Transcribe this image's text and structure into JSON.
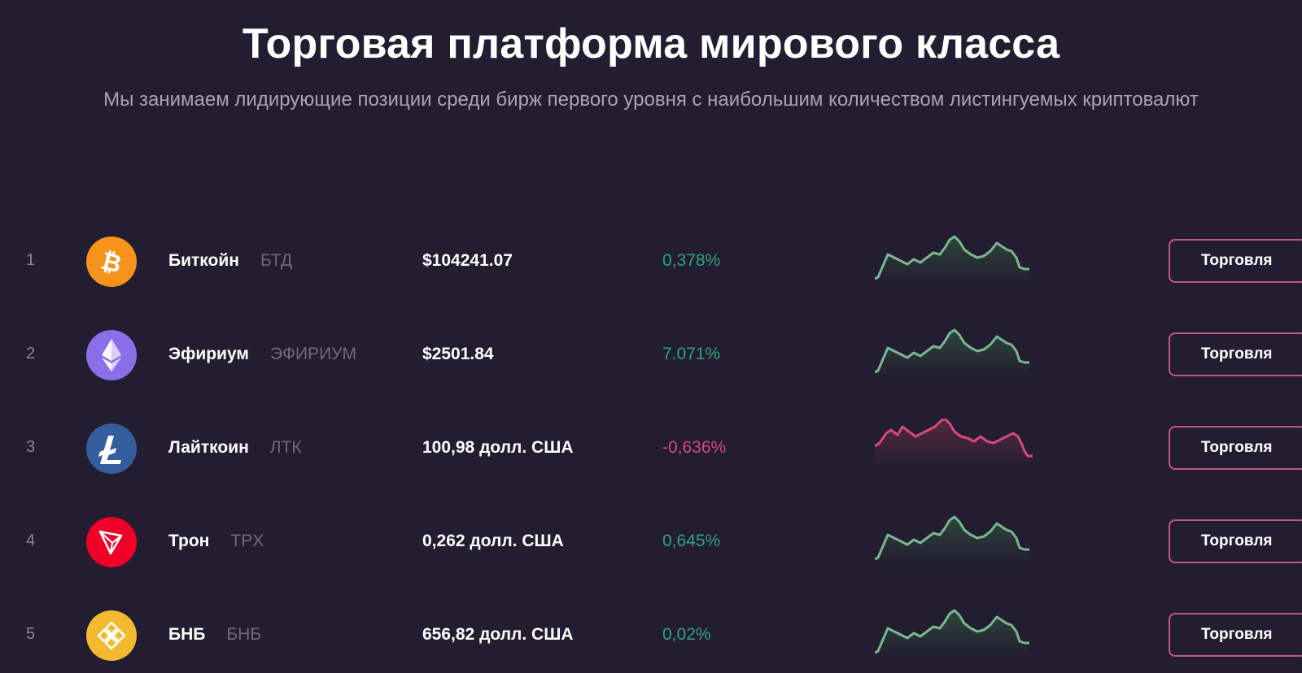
{
  "header": {
    "title": "Торговая платформа мирового класса",
    "subtitle": "Мы занимаем лидирующие позиции среди бирж первого уровня с наибольшим количеством листингуемых криптовалют"
  },
  "colors": {
    "background": "#221d31",
    "up": "#2fa37c",
    "down": "#d9487b",
    "button_border": "#c2558b"
  },
  "coins": [
    {
      "rank": "1",
      "name": "Биткойн",
      "ticker": "БТД",
      "price": "$104241.07",
      "change": "0,378%",
      "trend": "up",
      "icon": "bitcoin-icon",
      "icon_color": "#f7931a",
      "trade_label": "Торговля"
    },
    {
      "rank": "2",
      "name": "Эфириум",
      "ticker": "ЭФИРИУМ",
      "price": "$2501.84",
      "change": "7.071%",
      "trend": "up",
      "icon": "ethereum-icon",
      "icon_color": "#8a6fe8",
      "trade_label": "Торговля"
    },
    {
      "rank": "3",
      "name": "Лайткоин",
      "ticker": "ЛТК",
      "price": "100,98 долл. США",
      "change": "-0,636%",
      "trend": "down",
      "icon": "litecoin-icon",
      "icon_color": "#345d9d",
      "trade_label": "Торговля"
    },
    {
      "rank": "4",
      "name": "Трон",
      "ticker": "TPX",
      "price": "0,262 долл. США",
      "change": "0,645%",
      "trend": "up",
      "icon": "tron-icon",
      "icon_color": "#ef0027",
      "trade_label": "Торговля"
    },
    {
      "rank": "5",
      "name": "БНБ",
      "ticker": "БНБ",
      "price": "656,82 долл. США",
      "change": "0,02%",
      "trend": "up",
      "icon": "bnb-icon",
      "icon_color": "#f3ba2f",
      "trade_label": "Торговля"
    }
  ]
}
